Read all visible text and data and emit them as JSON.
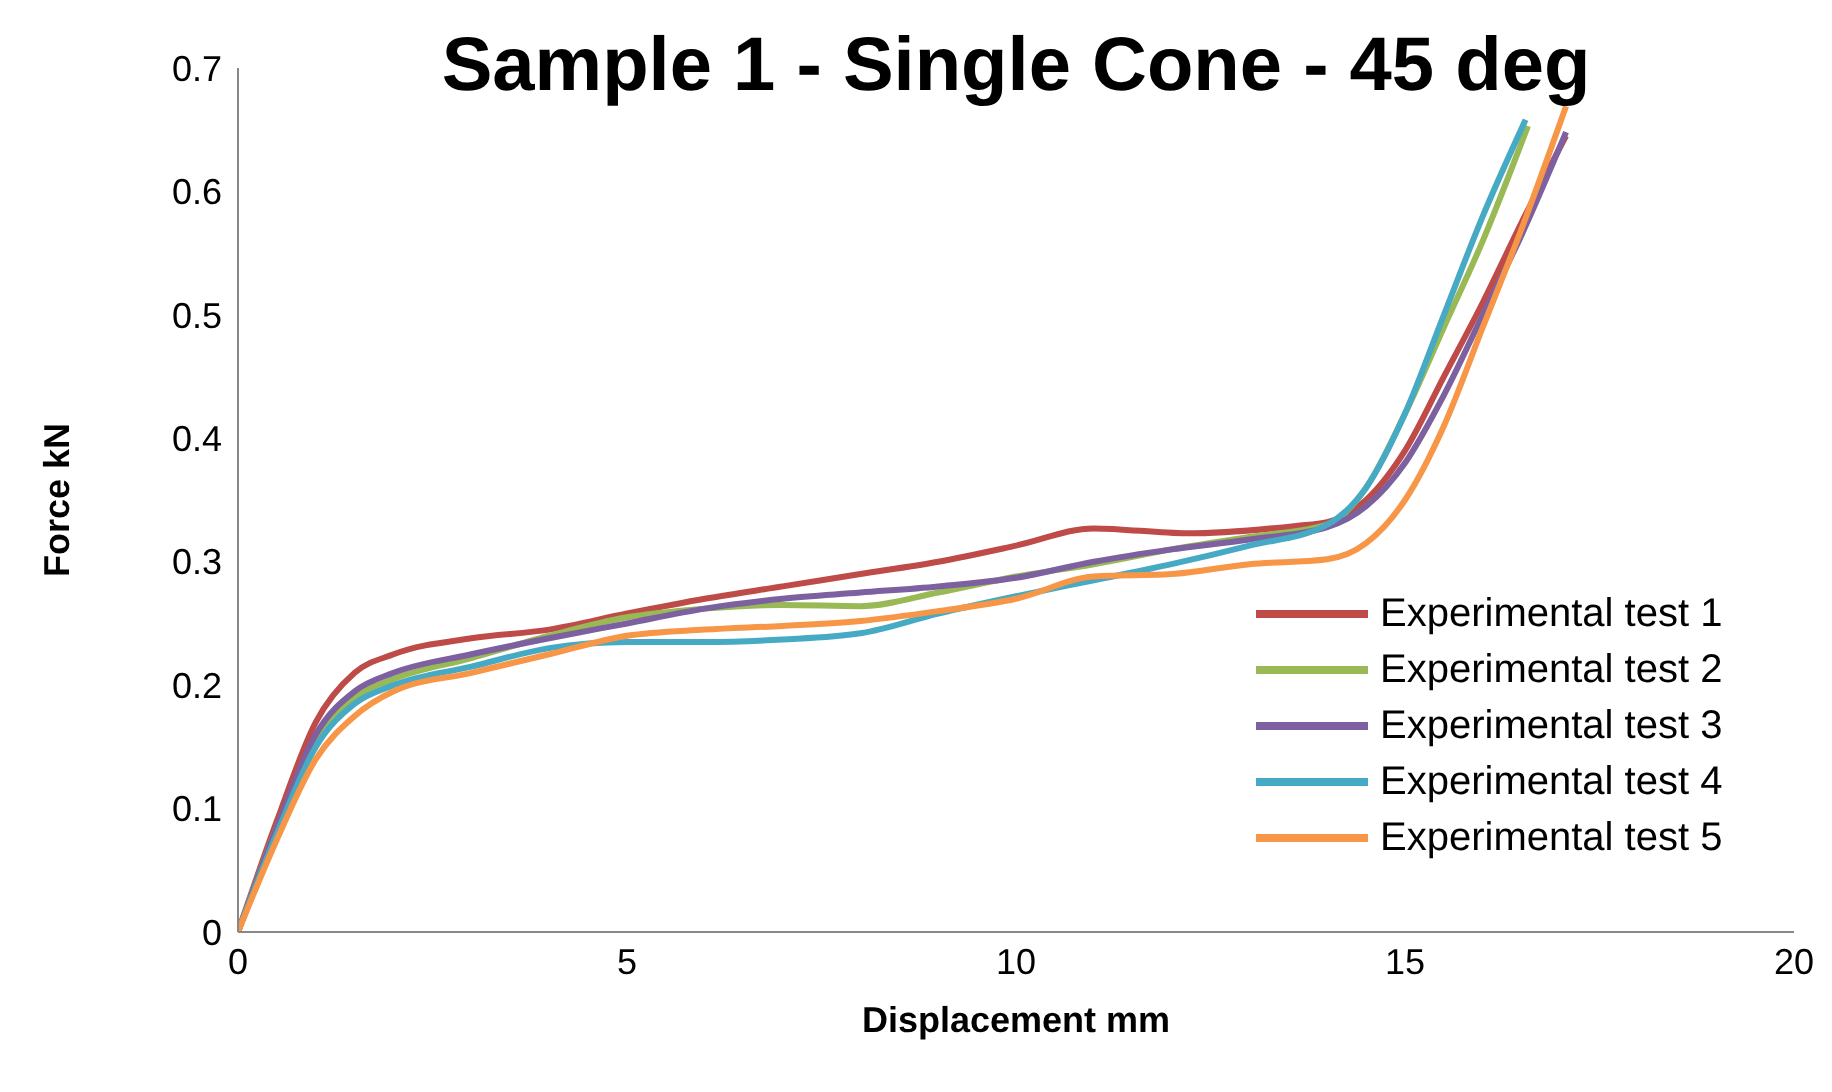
{
  "chart_data": {
    "type": "line",
    "title": "Sample 1 - Single Cone - 45 deg",
    "xlabel": "Displacement mm",
    "ylabel": "Force kN",
    "xlim": [
      0,
      20
    ],
    "xticks": [
      0,
      5,
      10,
      15,
      20
    ],
    "ylim": [
      0,
      0.7
    ],
    "yticks": [
      0,
      0.1,
      0.2,
      0.3,
      0.4,
      0.5,
      0.6,
      0.7
    ],
    "grid": false,
    "legend": "bottom right",
    "marker": "none",
    "line_style": "solid",
    "series": [
      {
        "name": "Experimental test 1",
        "color": "#be4b48",
        "x": [
          0,
          0.5,
          1,
          1.5,
          2,
          3,
          4,
          5,
          6,
          7,
          8,
          9,
          10,
          11,
          12.2,
          13.6,
          14,
          14.5,
          15,
          15.5,
          16,
          16.5,
          17.07
        ],
        "values": [
          0,
          0.09,
          0.17,
          0.21,
          0.225,
          0.238,
          0.245,
          0.258,
          0.27,
          0.28,
          0.29,
          0.3,
          0.313,
          0.327,
          0.323,
          0.329,
          0.332,
          0.35,
          0.39,
          0.45,
          0.51,
          0.575,
          0.645
        ]
      },
      {
        "name": "Experimental test 2",
        "color": "#98b954",
        "x": [
          0,
          0.5,
          1,
          1.5,
          2,
          3,
          4,
          5,
          6,
          7,
          8,
          9,
          10,
          11,
          12,
          13,
          14,
          14.5,
          15,
          15.5,
          16,
          16.58
        ],
        "values": [
          0,
          0.085,
          0.155,
          0.19,
          0.205,
          0.222,
          0.24,
          0.255,
          0.262,
          0.265,
          0.264,
          0.275,
          0.288,
          0.298,
          0.31,
          0.32,
          0.33,
          0.36,
          0.42,
          0.49,
          0.56,
          0.653
        ]
      },
      {
        "name": "Experimental test 3",
        "color": "#7d60a0",
        "x": [
          0,
          0.5,
          1,
          1.5,
          2,
          3,
          4,
          5,
          6,
          7,
          8,
          9,
          10,
          11,
          12,
          13,
          14,
          14.5,
          15,
          15.5,
          16,
          16.5,
          17.07
        ],
        "values": [
          0,
          0.085,
          0.16,
          0.195,
          0.21,
          0.225,
          0.238,
          0.25,
          0.262,
          0.27,
          0.275,
          0.28,
          0.287,
          0.3,
          0.31,
          0.318,
          0.328,
          0.345,
          0.38,
          0.435,
          0.5,
          0.565,
          0.648
        ]
      },
      {
        "name": "Experimental test 4",
        "color": "#46aac5",
        "x": [
          0,
          0.5,
          1,
          1.5,
          2,
          3,
          4,
          5,
          6,
          7,
          8,
          9,
          10,
          11,
          12,
          13,
          14,
          14.5,
          15,
          15.5,
          16,
          16.55
        ],
        "values": [
          0,
          0.08,
          0.15,
          0.185,
          0.2,
          0.215,
          0.23,
          0.235,
          0.235,
          0.237,
          0.242,
          0.258,
          0.272,
          0.285,
          0.298,
          0.313,
          0.33,
          0.36,
          0.42,
          0.5,
          0.58,
          0.658
        ]
      },
      {
        "name": "Experimental test 5",
        "color": "#f79646",
        "x": [
          0,
          0.5,
          1,
          1.5,
          2,
          3,
          4,
          5,
          6,
          7,
          8,
          9,
          10,
          11,
          12,
          13,
          14,
          14.5,
          15,
          15.5,
          16,
          16.5,
          17.07
        ],
        "values": [
          0,
          0.075,
          0.14,
          0.175,
          0.195,
          0.21,
          0.225,
          0.24,
          0.245,
          0.248,
          0.252,
          0.26,
          0.27,
          0.288,
          0.29,
          0.298,
          0.302,
          0.315,
          0.35,
          0.41,
          0.49,
          0.57,
          0.669
        ]
      }
    ]
  }
}
